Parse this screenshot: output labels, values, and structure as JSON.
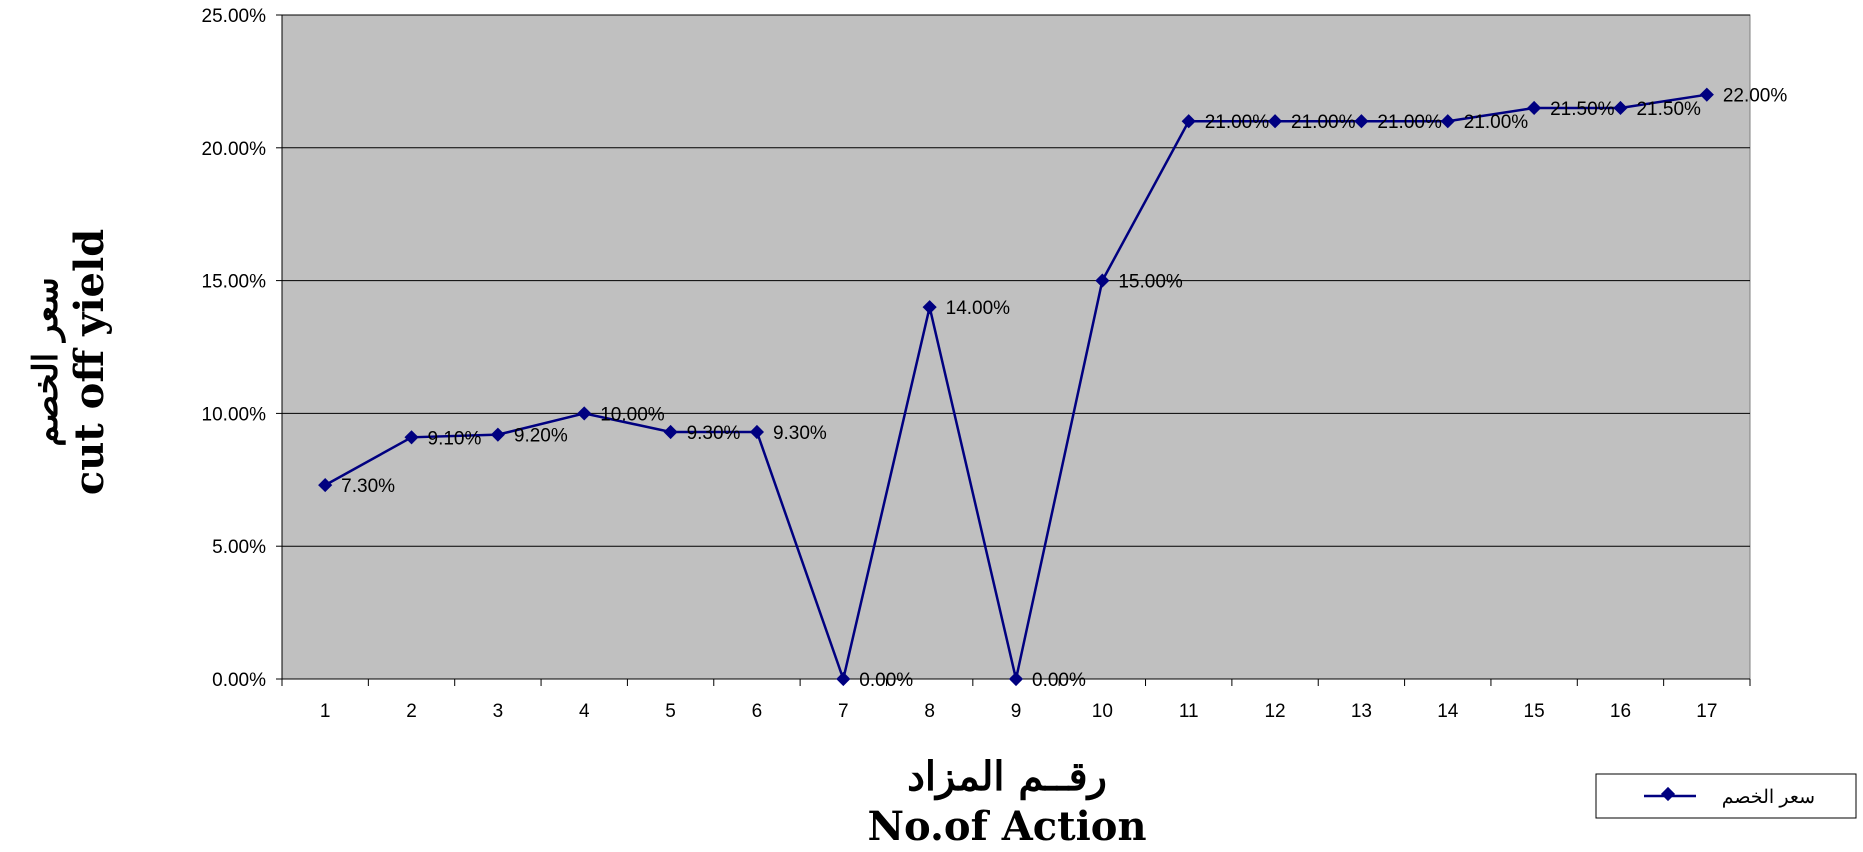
{
  "chart_data": {
    "type": "line",
    "categories": [
      "1",
      "2",
      "3",
      "4",
      "5",
      "6",
      "7",
      "8",
      "9",
      "10",
      "11",
      "12",
      "13",
      "14",
      "15",
      "16",
      "17"
    ],
    "series": [
      {
        "name": "سعر الخصم",
        "values": [
          7.3,
          9.1,
          9.2,
          10.0,
          9.3,
          9.3,
          0.0,
          14.0,
          0.0,
          15.0,
          21.0,
          21.0,
          21.0,
          21.0,
          21.5,
          21.5,
          22.0
        ],
        "data_labels": [
          "7.30%",
          "9.10%",
          "9.20%",
          "10.00%",
          "9.30%",
          "9.30%",
          "0.00%",
          "14.00%",
          "0.00%",
          "15.00%",
          "21.00%",
          "21.00%",
          "21.00%",
          "21.00%",
          "21.50%",
          "21.50%",
          "22.00%"
        ]
      }
    ],
    "y_ticks": [
      "0.00%",
      "5.00%",
      "10.00%",
      "15.00%",
      "20.00%",
      "25.00%"
    ],
    "ylim": [
      0,
      25
    ],
    "y_unit": "%",
    "xlabel_line1": "رقــم المزاد",
    "xlabel_line2": "No.of Action",
    "ylabel_line1": "سعر الخصم",
    "ylabel_line2": "cut off yield",
    "grid": "horizontal",
    "legend_position": "bottom-right",
    "colors": {
      "plot_background": "#c0c0c0",
      "series": "#000080",
      "gridline": "#000000"
    }
  }
}
